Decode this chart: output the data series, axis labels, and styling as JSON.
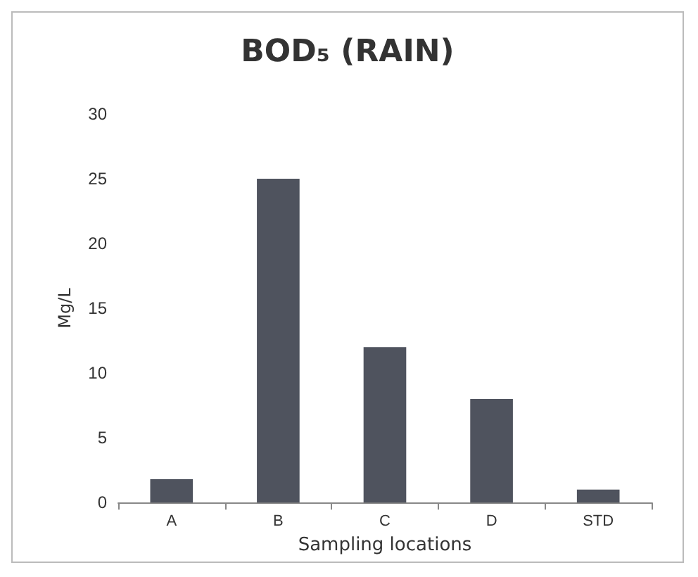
{
  "chart_data": {
    "type": "bar",
    "title": "BOD₅ (RAIN)",
    "xlabel": "Sampling locations",
    "ylabel": "Mg/L",
    "categories": [
      "A",
      "B",
      "C",
      "D",
      "STD"
    ],
    "values": [
      1.8,
      25,
      12,
      8,
      1
    ],
    "color": "#4f535e",
    "ylim": [
      0,
      30
    ],
    "yticks": [
      0,
      5,
      10,
      15,
      20,
      25,
      30
    ]
  }
}
